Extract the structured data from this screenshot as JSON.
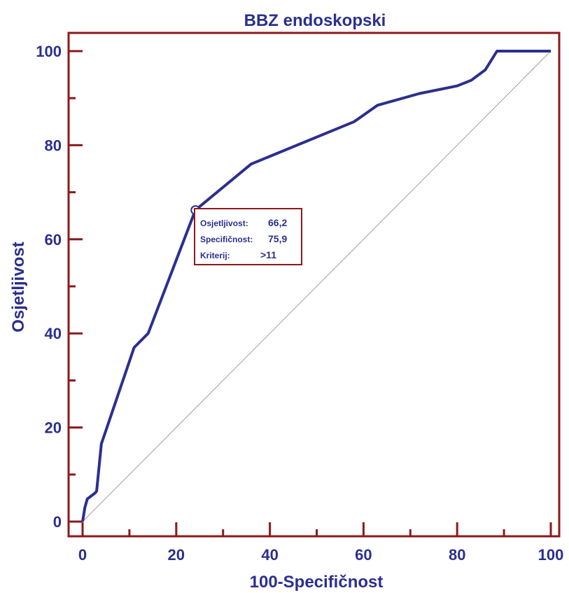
{
  "chart_data": {
    "type": "line",
    "title": "BBZ endoskopski",
    "xlabel": "100-Specifičnost",
    "ylabel": "Osjetljivost",
    "xlim": [
      0,
      100
    ],
    "ylim": [
      0,
      100
    ],
    "x_ticks": [
      "0",
      "20",
      "40",
      "60",
      "80",
      "100"
    ],
    "y_ticks": [
      "0",
      "20",
      "40",
      "60",
      "80",
      "100"
    ],
    "grid": false,
    "colors": {
      "curve": "#2b2f8f",
      "frame": "#8b1a1a",
      "diagonal": "#a0a0a0",
      "text": "#2b2f8f"
    },
    "series": [
      {
        "x": [
          0,
          0.5,
          1,
          2.7,
          3,
          4,
          11,
          14,
          24.1,
          36,
          58,
          63,
          72,
          80,
          83,
          86,
          88.5,
          100
        ],
        "y": [
          0,
          3,
          4.8,
          6.1,
          6.5,
          16.5,
          37,
          40,
          66.2,
          76,
          85,
          88.5,
          91,
          92.6,
          93.8,
          96,
          100,
          100
        ]
      }
    ],
    "reference_line": {
      "x": [
        0,
        100
      ],
      "y": [
        0,
        100
      ]
    },
    "marker": {
      "x": 24.1,
      "y": 66.2
    },
    "annotation": {
      "rows": [
        {
          "label": "Osjetljivost:",
          "value": "66,2"
        },
        {
          "label": "Specifičnost:",
          "value": "75,9"
        },
        {
          "label": "Kriterij:",
          "value": ">11"
        }
      ]
    }
  }
}
